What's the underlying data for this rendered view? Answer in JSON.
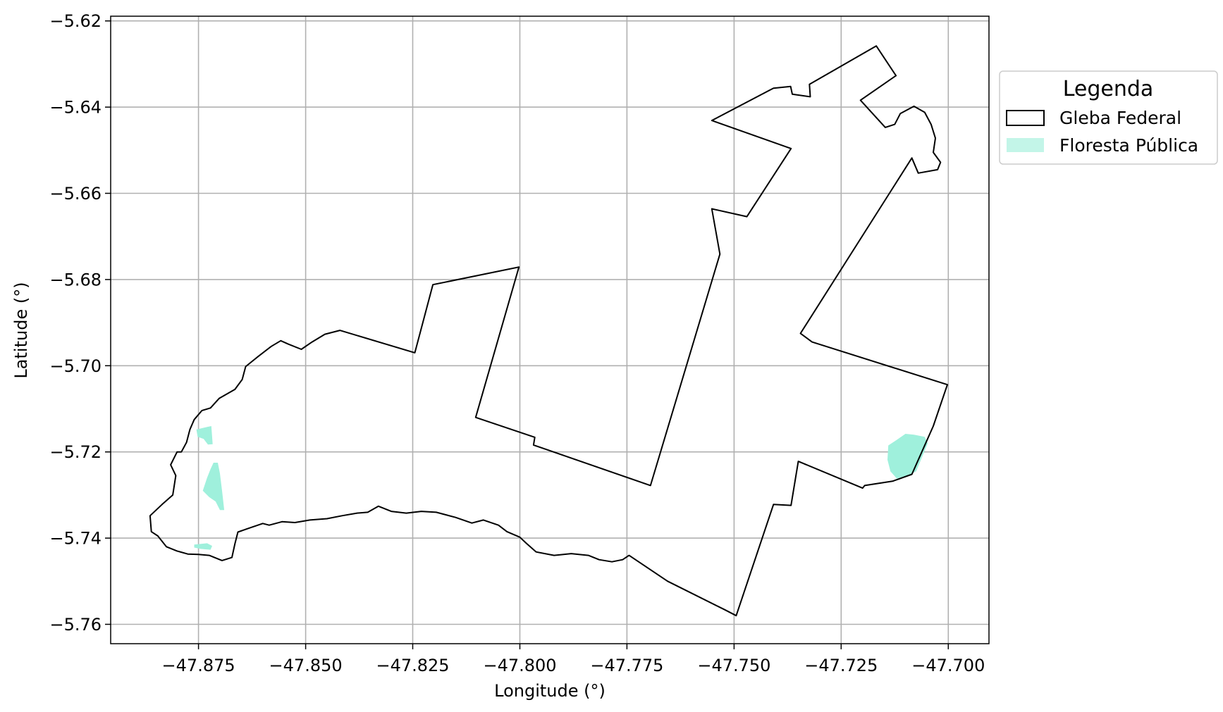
{
  "chart_data": {
    "type": "map",
    "xlabel": "Longitude (°)",
    "ylabel": "Latitude (°)",
    "xlim": [
      -47.8955,
      -47.6905
    ],
    "ylim": [
      -5.7645,
      -5.6189
    ],
    "grid": true,
    "xticks": [
      {
        "value": -47.875,
        "label": "−47.875"
      },
      {
        "value": -47.85,
        "label": "−47.850"
      },
      {
        "value": -47.825,
        "label": "−47.825"
      },
      {
        "value": -47.8,
        "label": "−47.800"
      },
      {
        "value": -47.775,
        "label": "−47.775"
      },
      {
        "value": -47.75,
        "label": "−47.750"
      },
      {
        "value": -47.725,
        "label": "−47.725"
      },
      {
        "value": -47.7,
        "label": "−47.700"
      }
    ],
    "yticks": [
      {
        "value": -5.62,
        "label": "−5.62"
      },
      {
        "value": -5.64,
        "label": "−5.64"
      },
      {
        "value": -5.66,
        "label": "−5.66"
      },
      {
        "value": -5.68,
        "label": "−5.68"
      },
      {
        "value": -5.7,
        "label": "−5.70"
      },
      {
        "value": -5.72,
        "label": "−5.72"
      },
      {
        "value": -5.74,
        "label": "−5.74"
      },
      {
        "value": -5.76,
        "label": "−5.76"
      }
    ],
    "legend": {
      "title": "Legenda",
      "placement": "outside-upper-right",
      "entries": [
        {
          "label": "Gleba Federal",
          "style": "outline",
          "color": "#000000"
        },
        {
          "label": "Floresta Pública",
          "style": "fill",
          "color": "#9ff0dc"
        }
      ]
    },
    "layers": [
      {
        "name": "Gleba Federal",
        "kind": "polygon-outline",
        "color": "#000000",
        "coordinates": [
          [
            -47.8742,
            -5.7104
          ],
          [
            -47.8722,
            -5.7098
          ],
          [
            -47.8702,
            -5.7076
          ],
          [
            -47.8665,
            -5.7055
          ],
          [
            -47.8648,
            -5.7032
          ],
          [
            -47.864,
            -5.7002
          ],
          [
            -47.861,
            -5.6978
          ],
          [
            -47.858,
            -5.6955
          ],
          [
            -47.8558,
            -5.6942
          ],
          [
            -47.854,
            -5.695
          ],
          [
            -47.851,
            -5.6962
          ],
          [
            -47.8485,
            -5.6945
          ],
          [
            -47.8455,
            -5.6927
          ],
          [
            -47.842,
            -5.6918
          ],
          [
            -47.8245,
            -5.697
          ],
          [
            -47.8203,
            -5.6812
          ],
          [
            -47.8002,
            -5.6771
          ],
          [
            -47.8103,
            -5.712
          ],
          [
            -47.7965,
            -5.7166
          ],
          [
            -47.7968,
            -5.7184
          ],
          [
            -47.7695,
            -5.7278
          ],
          [
            -47.7533,
            -5.6741
          ],
          [
            -47.7552,
            -5.6636
          ],
          [
            -47.747,
            -5.6654
          ],
          [
            -47.7367,
            -5.6496
          ],
          [
            -47.7552,
            -5.6431
          ],
          [
            -47.7408,
            -5.6356
          ],
          [
            -47.7368,
            -5.6352
          ],
          [
            -47.7364,
            -5.637
          ],
          [
            -47.7322,
            -5.6376
          ],
          [
            -47.7324,
            -5.6347
          ],
          [
            -47.7168,
            -5.6258
          ],
          [
            -47.7122,
            -5.6327
          ],
          [
            -47.7205,
            -5.6384
          ],
          [
            -47.7147,
            -5.6447
          ],
          [
            -47.7125,
            -5.644
          ],
          [
            -47.7112,
            -5.6415
          ],
          [
            -47.708,
            -5.6398
          ],
          [
            -47.7055,
            -5.6412
          ],
          [
            -47.704,
            -5.644
          ],
          [
            -47.703,
            -5.6472
          ],
          [
            -47.7035,
            -5.6505
          ],
          [
            -47.7018,
            -5.6528
          ],
          [
            -47.7025,
            -5.6545
          ],
          [
            -47.707,
            -5.6553
          ],
          [
            -47.7085,
            -5.6518
          ],
          [
            -47.7345,
            -5.6925
          ],
          [
            -47.7318,
            -5.6945
          ],
          [
            -47.7002,
            -5.7044
          ],
          [
            -47.7035,
            -5.714
          ],
          [
            -47.7085,
            -5.7252
          ],
          [
            -47.713,
            -5.7268
          ],
          [
            -47.7195,
            -5.7278
          ],
          [
            -47.72,
            -5.7284
          ],
          [
            -47.735,
            -5.7222
          ],
          [
            -47.7367,
            -5.7324
          ],
          [
            -47.7408,
            -5.7322
          ],
          [
            -47.7495,
            -5.758
          ],
          [
            -47.7522,
            -5.7566
          ],
          [
            -47.7655,
            -5.75
          ],
          [
            -47.7745,
            -5.744
          ],
          [
            -47.776,
            -5.745
          ],
          [
            -47.7785,
            -5.7455
          ],
          [
            -47.7815,
            -5.745
          ],
          [
            -47.784,
            -5.744
          ],
          [
            -47.788,
            -5.7436
          ],
          [
            -47.792,
            -5.744
          ],
          [
            -47.7962,
            -5.7432
          ],
          [
            -47.7985,
            -5.7412
          ],
          [
            -47.8,
            -5.7398
          ],
          [
            -47.803,
            -5.7385
          ],
          [
            -47.805,
            -5.737
          ],
          [
            -47.8085,
            -5.7358
          ],
          [
            -47.8112,
            -5.7365
          ],
          [
            -47.815,
            -5.7352
          ],
          [
            -47.8195,
            -5.734
          ],
          [
            -47.823,
            -5.7338
          ],
          [
            -47.8265,
            -5.7342
          ],
          [
            -47.83,
            -5.7338
          ],
          [
            -47.833,
            -5.7326
          ],
          [
            -47.8355,
            -5.734
          ],
          [
            -47.838,
            -5.7342
          ],
          [
            -47.8415,
            -5.7348
          ],
          [
            -47.845,
            -5.7355
          ],
          [
            -47.849,
            -5.7358
          ],
          [
            -47.8525,
            -5.7364
          ],
          [
            -47.8555,
            -5.7362
          ],
          [
            -47.8585,
            -5.737
          ],
          [
            -47.86,
            -5.7366
          ],
          [
            -47.8635,
            -5.7378
          ],
          [
            -47.8658,
            -5.7386
          ],
          [
            -47.8665,
            -5.7413
          ],
          [
            -47.8672,
            -5.7445
          ],
          [
            -47.8695,
            -5.7452
          ],
          [
            -47.8725,
            -5.744
          ],
          [
            -47.875,
            -5.7438
          ],
          [
            -47.8775,
            -5.7437
          ],
          [
            -47.88,
            -5.743
          ],
          [
            -47.8825,
            -5.742
          ],
          [
            -47.8845,
            -5.7395
          ],
          [
            -47.886,
            -5.7385
          ],
          [
            -47.8863,
            -5.7348
          ],
          [
            -47.8835,
            -5.7322
          ],
          [
            -47.881,
            -5.73
          ],
          [
            -47.8803,
            -5.7255
          ],
          [
            -47.8815,
            -5.723
          ],
          [
            -47.88,
            -5.72
          ],
          [
            -47.879,
            -5.72
          ],
          [
            -47.8778,
            -5.7178
          ],
          [
            -47.877,
            -5.7148
          ],
          [
            -47.876,
            -5.7125
          ],
          [
            -47.8742,
            -5.7104
          ]
        ]
      },
      {
        "name": "Floresta Pública",
        "kind": "polygon-fill",
        "color": "#9ff0dc",
        "polygons": [
          [
            [
              -47.8755,
              -5.7148
            ],
            [
              -47.873,
              -5.7142
            ],
            [
              -47.872,
              -5.714
            ],
            [
              -47.8717,
              -5.7182
            ],
            [
              -47.8728,
              -5.7183
            ],
            [
              -47.8738,
              -5.717
            ],
            [
              -47.8752,
              -5.7165
            ]
          ],
          [
            [
              -47.874,
              -5.729
            ],
            [
              -47.873,
              -5.726
            ],
            [
              -47.8722,
              -5.724
            ],
            [
              -47.8715,
              -5.7225
            ],
            [
              -47.8705,
              -5.7225
            ],
            [
              -47.87,
              -5.725
            ],
            [
              -47.8695,
              -5.729
            ],
            [
              -47.869,
              -5.7335
            ],
            [
              -47.87,
              -5.7335
            ],
            [
              -47.871,
              -5.7315
            ],
            [
              -47.8725,
              -5.7305
            ]
          ],
          [
            [
              -47.876,
              -5.7415
            ],
            [
              -47.873,
              -5.7412
            ],
            [
              -47.8718,
              -5.7418
            ],
            [
              -47.8722,
              -5.7427
            ],
            [
              -47.8745,
              -5.7425
            ],
            [
              -47.876,
              -5.7422
            ]
          ],
          [
            [
              -47.714,
              -5.7185
            ],
            [
              -47.712,
              -5.7172
            ],
            [
              -47.71,
              -5.7158
            ],
            [
              -47.708,
              -5.716
            ],
            [
              -47.7055,
              -5.7165
            ],
            [
              -47.7048,
              -5.718
            ],
            [
              -47.7075,
              -5.7245
            ],
            [
              -47.7095,
              -5.7255
            ],
            [
              -47.712,
              -5.7262
            ],
            [
              -47.7135,
              -5.7245
            ],
            [
              -47.7142,
              -5.7218
            ]
          ]
        ]
      }
    ]
  }
}
